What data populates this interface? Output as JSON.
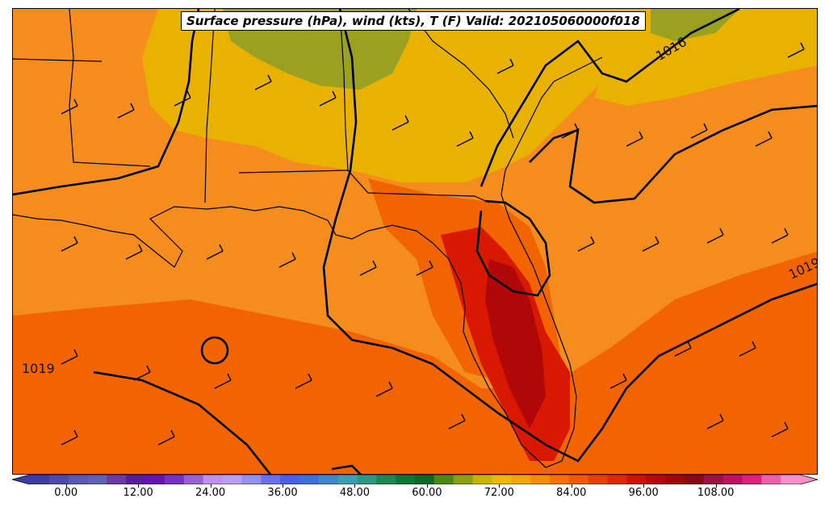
{
  "title": "Surface pressure (hPa), wind (kts), T (F) Valid: 202105060000f018",
  "isobar_labels": [
    "1016",
    "1019",
    "1019"
  ],
  "colorbar": {
    "ticks": [
      "0.00",
      "12.00",
      "24.00",
      "36.00",
      "48.00",
      "60.00",
      "72.00",
      "84.00",
      "96.00",
      "108.00"
    ],
    "tick_values": [
      0,
      12,
      24,
      36,
      48,
      60,
      72,
      84,
      96,
      108
    ],
    "min": -6,
    "max": 122,
    "step": 3,
    "colors": [
      "#3c3ca8",
      "#4a4ab0",
      "#5858b8",
      "#6060b8",
      "#6a3aa8",
      "#5a1aa0",
      "#6a10b8",
      "#7a30c8",
      "#9a60d8",
      "#c090f0",
      "#b8a0f8",
      "#9090f8",
      "#6a70f0",
      "#4a60e8",
      "#3a70e0",
      "#3a88d0",
      "#3aa0b8",
      "#2a9a80",
      "#1a8a50",
      "#0a7a30",
      "#0a6a20",
      "#4a8a10",
      "#8aa010",
      "#c8b400",
      "#f0b800",
      "#f8a400",
      "#f88c00",
      "#f87000",
      "#f05a00",
      "#e84000",
      "#e02800",
      "#d01000",
      "#b80808",
      "#a00808",
      "#8a0810",
      "#a01040",
      "#c01060",
      "#e02080",
      "#f060a8",
      "#f890c8"
    ]
  },
  "colors": {
    "map_base": "#f07a1a",
    "cool_land": "#e8b000",
    "coldest": "#9a9a20",
    "warm_ocean": "#f05a00",
    "hot": "#d01000",
    "hottest": "#a00808",
    "isobar": "#000000"
  }
}
